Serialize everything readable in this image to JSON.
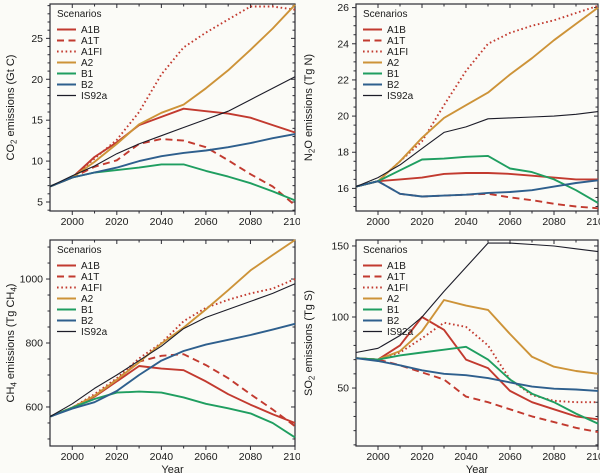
{
  "figure": {
    "description": "Four-panel emissions scenarios chart (CO2, N2O, CH4, SO2) for SRES scenarios vs IS92a, 1990-2100"
  },
  "legend": {
    "title": "Scenarios",
    "entries": [
      "A1B",
      "A1T",
      "A1FI",
      "A2",
      "B1",
      "B2",
      "IS92a"
    ]
  },
  "colors": {
    "red": "#c23a2f",
    "orange": "#cd9338",
    "green": "#1f9e60",
    "blue": "#2e5f8d",
    "black": "#1c1c28",
    "axis": "#2b2b33",
    "text": "#1a1a1a",
    "background": "#fbfbf7"
  },
  "chart_data": [
    {
      "id": "co2",
      "type": "line",
      "title": "",
      "ylabel_segments": [
        {
          "t": "CO"
        },
        {
          "t": "2",
          "sub": true
        },
        {
          "t": " emissions (Gt C)"
        }
      ],
      "xlabel": "",
      "show_xlabel": false,
      "x": [
        1990,
        2000,
        2010,
        2020,
        2030,
        2040,
        2050,
        2060,
        2070,
        2080,
        2090,
        2100
      ],
      "xlim": [
        1990,
        2100
      ],
      "xticks": [
        2000,
        2020,
        2040,
        2060,
        2080,
        2100
      ],
      "xminor_step": 10,
      "ylim": [
        3.9,
        29.2
      ],
      "yticks": [
        5,
        10,
        15,
        20,
        25
      ],
      "yminor_step": 1,
      "grid": false,
      "legend_position": "top-left",
      "series": [
        {
          "name": "A1B",
          "color": "red",
          "dash": "solid",
          "width": 1.9,
          "values": [
            6.9,
            8.0,
            10.5,
            12.3,
            14.4,
            15.4,
            16.4,
            16.1,
            15.8,
            15.3,
            14.4,
            13.5
          ]
        },
        {
          "name": "A1T",
          "color": "red",
          "dash": "dashed",
          "width": 1.9,
          "values": [
            6.9,
            8.0,
            9.3,
            10.1,
            12.1,
            12.7,
            12.5,
            11.7,
            10.1,
            8.4,
            6.9,
            4.6
          ]
        },
        {
          "name": "A1FI",
          "color": "red",
          "dash": "dotted",
          "width": 1.9,
          "values": [
            6.9,
            8.0,
            10.3,
            12.6,
            16.0,
            20.6,
            23.9,
            25.7,
            27.3,
            28.9,
            28.9,
            28.5
          ]
        },
        {
          "name": "A2",
          "color": "orange",
          "dash": "solid",
          "width": 1.9,
          "values": [
            6.9,
            8.0,
            9.9,
            12.1,
            14.5,
            15.9,
            16.9,
            18.9,
            21.1,
            23.6,
            26.2,
            29.1
          ]
        },
        {
          "name": "B1",
          "color": "green",
          "dash": "solid",
          "width": 1.9,
          "values": [
            6.9,
            8.0,
            8.6,
            8.9,
            9.2,
            9.6,
            9.6,
            8.8,
            8.1,
            7.3,
            6.3,
            5.2
          ]
        },
        {
          "name": "B2",
          "color": "blue",
          "dash": "solid",
          "width": 1.9,
          "values": [
            6.9,
            8.0,
            8.6,
            9.2,
            10.0,
            10.6,
            11.0,
            11.3,
            11.7,
            12.2,
            12.8,
            13.3
          ]
        },
        {
          "name": "IS92a",
          "color": "black",
          "dash": "solid",
          "width": 1.1,
          "values": [
            6.9,
            8.2,
            9.4,
            10.9,
            12.1,
            13.1,
            14.1,
            15.1,
            16.1,
            17.5,
            18.9,
            20.3
          ]
        }
      ]
    },
    {
      "id": "n2o",
      "type": "line",
      "title": "",
      "ylabel_segments": [
        {
          "t": "N"
        },
        {
          "t": "2",
          "sub": true
        },
        {
          "t": "O emissions (Tg N)"
        }
      ],
      "xlabel": "",
      "show_xlabel": false,
      "x": [
        1990,
        2000,
        2010,
        2020,
        2030,
        2040,
        2050,
        2060,
        2070,
        2080,
        2090,
        2100
      ],
      "xlim": [
        1990,
        2100
      ],
      "xticks": [
        2000,
        2020,
        2040,
        2060,
        2080,
        2100
      ],
      "xminor_step": 10,
      "ylim": [
        14.75,
        26.2
      ],
      "yticks": [
        16,
        18,
        20,
        22,
        24,
        26
      ],
      "yminor_step": 0.5,
      "grid": false,
      "legend_position": "top-left",
      "series": [
        {
          "name": "A1B",
          "color": "red",
          "dash": "solid",
          "width": 1.9,
          "values": [
            16.1,
            16.4,
            16.5,
            16.6,
            16.8,
            16.85,
            16.85,
            16.8,
            16.7,
            16.6,
            16.5,
            16.5
          ]
        },
        {
          "name": "A1T",
          "color": "red",
          "dash": "dashed",
          "width": 1.9,
          "values": [
            16.1,
            16.4,
            15.7,
            15.55,
            15.6,
            15.65,
            15.7,
            15.5,
            15.35,
            15.15,
            15.0,
            14.9
          ]
        },
        {
          "name": "A1FI",
          "color": "red",
          "dash": "dotted",
          "width": 1.9,
          "values": [
            16.1,
            16.4,
            17.5,
            18.6,
            20.6,
            22.5,
            24.0,
            24.6,
            25.0,
            25.3,
            25.7,
            26.1
          ]
        },
        {
          "name": "A2",
          "color": "orange",
          "dash": "solid",
          "width": 1.9,
          "values": [
            16.1,
            16.4,
            17.5,
            18.8,
            19.9,
            20.6,
            21.3,
            22.3,
            23.2,
            24.2,
            25.1,
            26.0
          ]
        },
        {
          "name": "B1",
          "color": "green",
          "dash": "solid",
          "width": 1.9,
          "values": [
            16.1,
            16.4,
            17.0,
            17.6,
            17.65,
            17.75,
            17.8,
            17.1,
            16.9,
            16.5,
            15.9,
            15.2
          ]
        },
        {
          "name": "B2",
          "color": "blue",
          "dash": "solid",
          "width": 1.9,
          "values": [
            16.1,
            16.4,
            15.7,
            15.55,
            15.6,
            15.65,
            15.75,
            15.8,
            15.9,
            16.1,
            16.3,
            16.45
          ]
        },
        {
          "name": "IS92a",
          "color": "black",
          "dash": "solid",
          "width": 1.1,
          "values": [
            16.1,
            16.6,
            17.3,
            18.2,
            19.1,
            19.4,
            19.85,
            19.9,
            19.95,
            20.0,
            20.1,
            20.25
          ]
        }
      ]
    },
    {
      "id": "ch4",
      "type": "line",
      "title": "",
      "ylabel_segments": [
        {
          "t": "CH"
        },
        {
          "t": "4",
          "sub": true
        },
        {
          "t": " emissions (Tg CH"
        },
        {
          "t": "4",
          "sub": true
        },
        {
          "t": ")"
        }
      ],
      "xlabel": "Year",
      "show_xlabel": true,
      "x": [
        1990,
        2000,
        2010,
        2020,
        2030,
        2040,
        2050,
        2060,
        2070,
        2080,
        2090,
        2100
      ],
      "xlim": [
        1990,
        2100
      ],
      "xticks": [
        2000,
        2020,
        2040,
        2060,
        2080,
        2100
      ],
      "xminor_step": 10,
      "ylim": [
        478,
        1122
      ],
      "yticks": [
        600,
        800,
        1000
      ],
      "yminor_step": 50,
      "grid": false,
      "legend_position": "top-left",
      "series": [
        {
          "name": "A1B",
          "color": "red",
          "dash": "solid",
          "width": 1.9,
          "values": [
            570,
            598,
            632,
            680,
            728,
            720,
            715,
            680,
            640,
            607,
            577,
            550
          ]
        },
        {
          "name": "A1T",
          "color": "red",
          "dash": "dashed",
          "width": 1.9,
          "values": [
            570,
            598,
            635,
            686,
            742,
            760,
            765,
            731,
            690,
            640,
            592,
            540
          ]
        },
        {
          "name": "A1FI",
          "color": "red",
          "dash": "dotted",
          "width": 1.9,
          "values": [
            570,
            598,
            640,
            690,
            752,
            800,
            868,
            910,
            935,
            955,
            970,
            1000
          ]
        },
        {
          "name": "A2",
          "color": "orange",
          "dash": "solid",
          "width": 1.9,
          "values": [
            570,
            598,
            635,
            685,
            740,
            798,
            848,
            905,
            965,
            1027,
            1075,
            1122
          ]
        },
        {
          "name": "B1",
          "color": "green",
          "dash": "solid",
          "width": 1.9,
          "values": [
            570,
            598,
            625,
            645,
            648,
            645,
            630,
            610,
            596,
            580,
            550,
            505
          ]
        },
        {
          "name": "B2",
          "color": "blue",
          "dash": "solid",
          "width": 1.9,
          "values": [
            570,
            595,
            615,
            650,
            700,
            745,
            775,
            795,
            810,
            825,
            842,
            860
          ]
        },
        {
          "name": "IS92a",
          "color": "black",
          "dash": "solid",
          "width": 1.1,
          "values": [
            570,
            610,
            658,
            700,
            745,
            790,
            845,
            880,
            905,
            930,
            955,
            985
          ]
        }
      ]
    },
    {
      "id": "so2",
      "type": "line",
      "title": "",
      "ylabel_segments": [
        {
          "t": "SO"
        },
        {
          "t": "2",
          "sub": true
        },
        {
          "t": " emissions (Tg S)"
        }
      ],
      "xlabel": "Year",
      "show_xlabel": true,
      "x": [
        1990,
        2000,
        2010,
        2020,
        2030,
        2040,
        2050,
        2060,
        2070,
        2080,
        2090,
        2100
      ],
      "xlim": [
        1990,
        2100
      ],
      "xticks": [
        2000,
        2020,
        2040,
        2060,
        2080,
        2100
      ],
      "xminor_step": 10,
      "ylim": [
        9.2,
        154.2
      ],
      "yticks": [
        50,
        100,
        150
      ],
      "yminor_step": 10,
      "grid": false,
      "legend_position": "top-left",
      "series": [
        {
          "name": "A1B",
          "color": "red",
          "dash": "solid",
          "width": 1.9,
          "values": [
            71,
            70,
            80,
            100,
            91,
            70,
            64,
            48,
            40,
            35,
            30,
            28
          ]
        },
        {
          "name": "A1T",
          "color": "red",
          "dash": "dashed",
          "width": 1.9,
          "values": [
            71,
            70,
            66,
            61,
            56,
            44,
            40,
            35,
            30,
            26,
            22,
            19
          ]
        },
        {
          "name": "A1FI",
          "color": "red",
          "dash": "dotted",
          "width": 1.9,
          "values": [
            71,
            70,
            75,
            85,
            96,
            93,
            80,
            56,
            45,
            41,
            40,
            40
          ]
        },
        {
          "name": "A2",
          "color": "orange",
          "dash": "solid",
          "width": 1.9,
          "values": [
            71,
            70,
            76,
            90,
            112,
            108,
            105,
            88,
            72,
            65,
            62,
            60
          ]
        },
        {
          "name": "B1",
          "color": "green",
          "dash": "solid",
          "width": 1.9,
          "values": [
            71,
            70,
            73,
            75,
            77,
            79,
            70,
            56,
            46,
            40,
            32,
            25
          ]
        },
        {
          "name": "B2",
          "color": "blue",
          "dash": "solid",
          "width": 1.9,
          "values": [
            71,
            69,
            66,
            62.5,
            60,
            59,
            57,
            54,
            51,
            49.5,
            49,
            48
          ]
        },
        {
          "name": "IS92a",
          "color": "black",
          "dash": "solid",
          "width": 1.1,
          "values": [
            75,
            78,
            87,
            100,
            118,
            135,
            152,
            152,
            151,
            150,
            148,
            146
          ]
        }
      ]
    }
  ]
}
